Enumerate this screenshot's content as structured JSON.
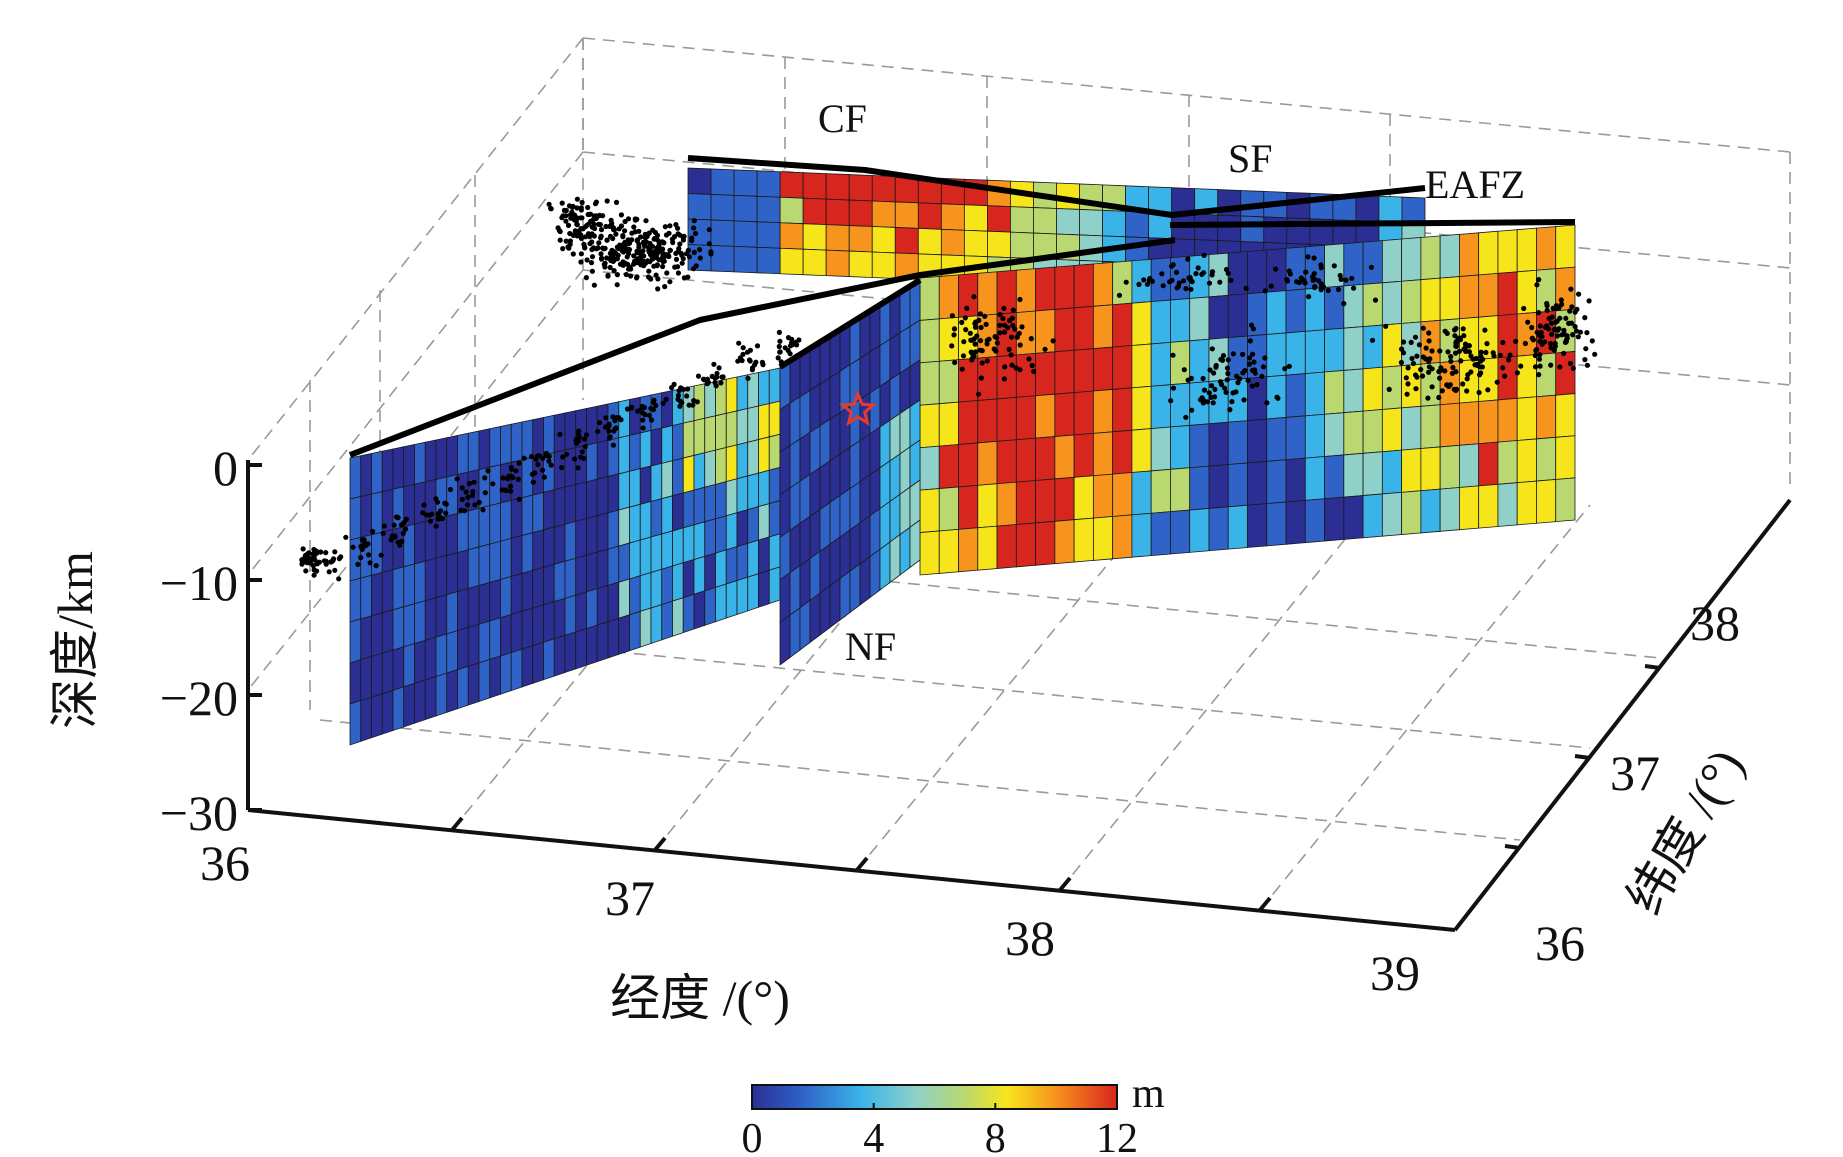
{
  "chart_data": {
    "type": "3d-fault-slip",
    "description_units": {
      "slip": "m",
      "depth": "km"
    },
    "xlabel": "经度 /(°)",
    "ylabel": "纬度 /(°)",
    "zlabel": "深度/km",
    "x_ticks": [
      "36",
      "37",
      "38",
      "39"
    ],
    "y_ticks": [
      "36",
      "37",
      "38"
    ],
    "z_ticks": [
      "0",
      "−10",
      "−20",
      "−30"
    ],
    "xlim": [
      36,
      39
    ],
    "ylim": [
      36,
      38.6
    ],
    "zlim": [
      -30,
      0
    ],
    "faults": [
      {
        "name": "CF",
        "label": "CF"
      },
      {
        "name": "SF",
        "label": "SF"
      },
      {
        "name": "EAFZ",
        "label": "EAFZ"
      },
      {
        "name": "NF",
        "label": "NF"
      }
    ],
    "colorbar": {
      "label": "m",
      "ticks": [
        "0",
        "4",
        "8",
        "12"
      ],
      "range": [
        0,
        12
      ],
      "colors": [
        "#2b2f94",
        "#2f63c8",
        "#3ab4e8",
        "#8fd0c9",
        "#b9d870",
        "#f7e51c",
        "#f7941d",
        "#d7261e"
      ]
    },
    "epicenter": {
      "marker": "star",
      "color": "#e83a2a"
    },
    "aftershock_color": "#000000"
  }
}
